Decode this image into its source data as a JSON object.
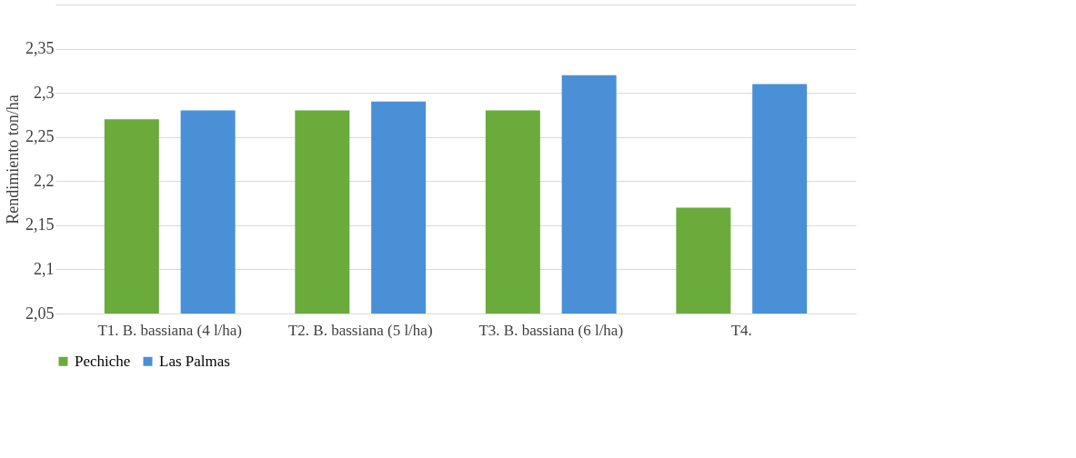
{
  "chart_data": {
    "type": "bar",
    "ylabel": "Rendimiento ton/ha",
    "categories": [
      "T1. B. bassiana (4 l/ha)",
      "T2. B. bassiana (5 l/ha)",
      "T3. B. bassiana (6 l/ha)",
      "T4."
    ],
    "series": [
      {
        "name": "Pechiche",
        "color": "#6aab3c",
        "values": [
          2.27,
          2.28,
          2.28,
          2.17
        ]
      },
      {
        "name": "Las Palmas",
        "color": "#4a90d6",
        "values": [
          2.28,
          2.29,
          2.32,
          2.31
        ]
      }
    ],
    "ylim": [
      2.05,
      2.4
    ],
    "yticks": [
      {
        "value": 2.05,
        "label": "2,05"
      },
      {
        "value": 2.1,
        "label": "2,1"
      },
      {
        "value": 2.15,
        "label": "2,15"
      },
      {
        "value": 2.2,
        "label": "2,2"
      },
      {
        "value": 2.25,
        "label": "2,25"
      },
      {
        "value": 2.3,
        "label": "2,3"
      },
      {
        "value": 2.35,
        "label": "2,35"
      },
      {
        "value": 2.4,
        "label": null
      }
    ],
    "grid": "y",
    "legend": "bottom"
  }
}
